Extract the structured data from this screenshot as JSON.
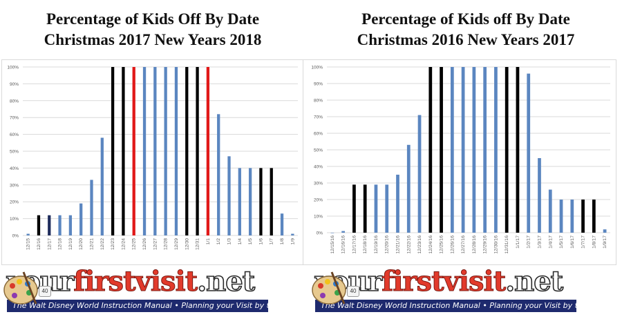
{
  "chart_data": [
    {
      "type": "bar",
      "title": "Percentage of Kids Off By Date",
      "subtitle": "Christmas 2017 New Years 2018",
      "ylim": [
        0,
        100
      ],
      "yticks": [
        "0%",
        "10%",
        "20%",
        "30%",
        "40%",
        "50%",
        "60%",
        "70%",
        "80%",
        "90%",
        "100%"
      ],
      "grid": true,
      "categories": [
        "12/15",
        "12/16",
        "12/17",
        "12/18",
        "12/19",
        "12/20",
        "12/21",
        "12/22",
        "12/23",
        "12/24",
        "12/25",
        "12/26",
        "12/27",
        "12/28",
        "12/29",
        "12/30",
        "12/31",
        "1/1",
        "1/2",
        "1/3",
        "1/4",
        "1/5",
        "1/6",
        "1/7",
        "1/8",
        "1/9"
      ],
      "values": [
        1,
        12,
        12,
        12,
        12,
        19,
        33,
        58,
        100,
        100,
        100,
        100,
        100,
        100,
        100,
        100,
        100,
        100,
        72,
        47,
        40,
        40,
        40,
        40,
        13,
        1
      ],
      "bar_colors": [
        "blue",
        "black",
        "navy",
        "blue",
        "blue",
        "blue",
        "blue",
        "blue",
        "black",
        "black",
        "red",
        "blue",
        "blue",
        "blue",
        "blue",
        "black",
        "black",
        "red",
        "blue",
        "blue",
        "blue",
        "blue",
        "black",
        "black",
        "blue",
        "blue"
      ]
    },
    {
      "type": "bar",
      "title": "Percentage of Kids off By Date",
      "subtitle": "Christmas 2016 New Years 2017",
      "ylim": [
        0,
        100
      ],
      "yticks": [
        "0%",
        "10%",
        "20%",
        "30%",
        "40%",
        "50%",
        "60%",
        "70%",
        "80%",
        "90%",
        "100%"
      ],
      "grid": true,
      "categories": [
        "12/15/16",
        "12/16/16",
        "12/17/16",
        "12/18/16",
        "12/19/16",
        "12/20/16",
        "12/21/16",
        "12/22/16",
        "12/23/16",
        "12/24/16",
        "12/25/16",
        "12/26/16",
        "12/27/16",
        "12/28/16",
        "12/29/16",
        "12/30/16",
        "12/31/16",
        "1/1/17",
        "1/2/17",
        "1/3/17",
        "1/4/17",
        "1/5/17",
        "1/6/17",
        "1/7/17",
        "1/8/17",
        "1/9/17"
      ],
      "values": [
        0,
        1,
        29,
        29,
        29,
        29,
        35,
        53,
        71,
        100,
        100,
        100,
        100,
        100,
        100,
        100,
        100,
        100,
        96,
        45,
        26,
        20,
        20,
        20,
        20,
        2
      ],
      "bar_colors": [
        "blue",
        "blue",
        "black",
        "black",
        "blue",
        "blue",
        "blue",
        "blue",
        "blue",
        "black",
        "black",
        "blue",
        "blue",
        "blue",
        "blue",
        "blue",
        "black",
        "black",
        "blue",
        "blue",
        "blue",
        "blue",
        "blue",
        "black",
        "black",
        "blue"
      ]
    }
  ],
  "colors": {
    "blue": "#5b86c0",
    "black": "#000000",
    "navy": "#1f2d5c",
    "red": "#e11919",
    "grid": "#d9d9d9",
    "tick": "#595959"
  },
  "banner": {
    "brand_1": "your",
    "brand_2": "firstvisit",
    "brand_3": ".net",
    "tagline": "The Walt Disney World Instruction Manual • Planning your Visit by the Numbers",
    "palette_icon": "artist-palette-icon",
    "dice_icon": "dice-icon"
  }
}
